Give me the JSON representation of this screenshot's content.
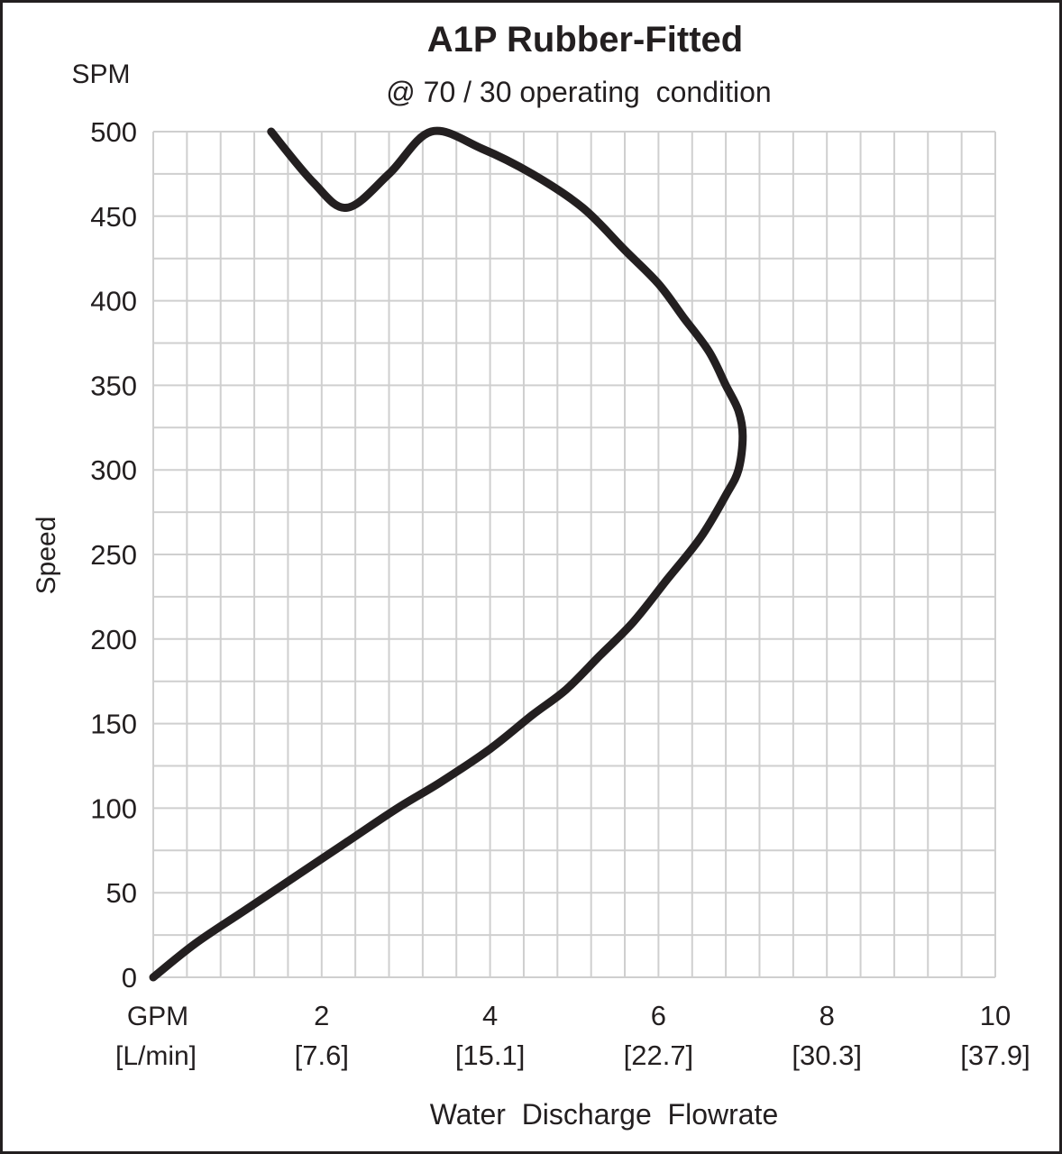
{
  "chart_data": {
    "type": "line",
    "title": "A1P Rubber-Fitted",
    "subtitle": "@ 70 / 30 operating  condition",
    "ylabel": "Speed",
    "yunit": "SPM",
    "xlabel": "Water  Discharge  Flowrate",
    "x_unit_primary": "GPM",
    "x_unit_secondary": "[L/min]",
    "xlim": [
      0,
      10
    ],
    "ylim": [
      0,
      500
    ],
    "x_grid_step": 0.4,
    "y_grid_step": 25,
    "grid": true,
    "y_ticks": [
      "0",
      "50",
      "100",
      "150",
      "200",
      "250",
      "300",
      "350",
      "400",
      "450",
      "500"
    ],
    "y_tick_values": [
      0,
      50,
      100,
      150,
      200,
      250,
      300,
      350,
      400,
      450,
      500
    ],
    "x_ticks": [
      {
        "value": 2,
        "label": "2",
        "sub": "[7.6]"
      },
      {
        "value": 4,
        "label": "4",
        "sub": "[15.1]"
      },
      {
        "value": 6,
        "label": "6",
        "sub": "[22.7]"
      },
      {
        "value": 8,
        "label": "8",
        "sub": "[30.3]"
      },
      {
        "value": 10,
        "label": "10",
        "sub": "[37.9]"
      }
    ],
    "series": [
      {
        "color": "#231f20",
        "x": [
          0.0,
          0.5,
          1.1,
          1.7,
          2.3,
          2.9,
          3.4,
          4.0,
          4.5,
          4.9,
          5.3,
          5.7,
          6.1,
          6.5,
          6.8,
          6.95,
          7.0,
          6.95,
          6.8,
          6.6,
          6.3,
          6.0,
          5.6,
          5.1,
          4.5,
          3.9,
          3.3,
          2.8,
          2.3,
          1.9,
          1.4
        ],
        "y": [
          0,
          20,
          40,
          60,
          80,
          100,
          115,
          135,
          155,
          170,
          190,
          210,
          235,
          260,
          285,
          300,
          320,
          335,
          350,
          370,
          390,
          410,
          430,
          455,
          475,
          490,
          500,
          475,
          455,
          470,
          500
        ]
      }
    ]
  },
  "colors": {
    "grid": "#cfcfcf",
    "line": "#231f20",
    "frame": "#231f20"
  }
}
